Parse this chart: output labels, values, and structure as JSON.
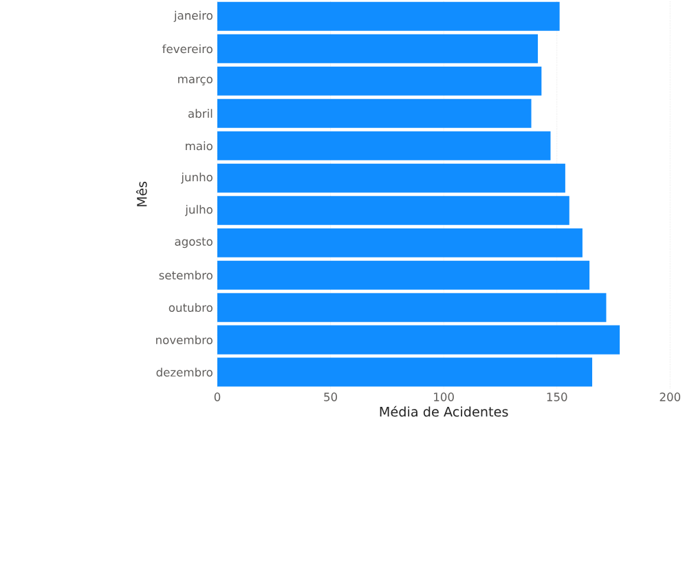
{
  "chart_data": {
    "type": "bar",
    "orientation": "horizontal",
    "xlabel": "Média de Acidentes",
    "ylabel": "Mês",
    "categories": [
      "janeiro",
      "fevereiro",
      "março",
      "abril",
      "maio",
      "junho",
      "julho",
      "agosto",
      "setembro",
      "outubro",
      "novembro",
      "dezembro"
    ],
    "values": [
      151.2,
      141.6,
      143.2,
      138.7,
      147.2,
      153.7,
      155.5,
      161.3,
      164.4,
      171.8,
      177.8,
      165.6
    ],
    "color": "#118dff",
    "xlim": [
      0,
      200
    ],
    "xticks": [
      0,
      50,
      100,
      150,
      200
    ],
    "grid": "x"
  }
}
